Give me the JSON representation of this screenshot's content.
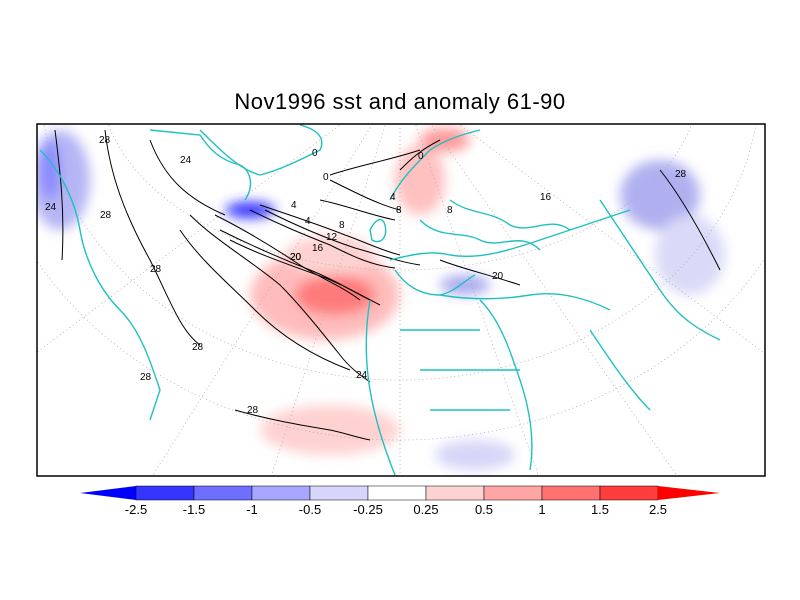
{
  "title": "Nov1996 sst and anomaly 61-90",
  "colors": {
    "neg_strong": "#0000ff",
    "neg_mid": "#7777ff",
    "neg_light": "#ccccf5",
    "pos_light": "#ffd6d6",
    "pos_mid": "#ff8888",
    "pos_strong": "#ff0000",
    "coast": "#20c0c0"
  },
  "contour_labels": [
    "28",
    "24",
    "28",
    "28",
    "28",
    "24",
    "20",
    "24",
    "28",
    "0",
    "0",
    "4",
    "4",
    "8",
    "12",
    "16",
    "20",
    "0",
    "4",
    "8",
    "8",
    "16",
    "20",
    "28",
    "28"
  ],
  "colorbar": {
    "labels": [
      "-2.5",
      "-1.5",
      "-1",
      "-0.5",
      "-0.25",
      "0.25",
      "0.5",
      "1",
      "1.5",
      "2.5"
    ],
    "colors": [
      "#0000ff",
      "#3535ff",
      "#6e6eff",
      "#a7a7ff",
      "#d6d6fb",
      "#ffffff",
      "#ffd2d2",
      "#ffa5a5",
      "#ff7070",
      "#ff3d3d",
      "#ff0000"
    ]
  }
}
